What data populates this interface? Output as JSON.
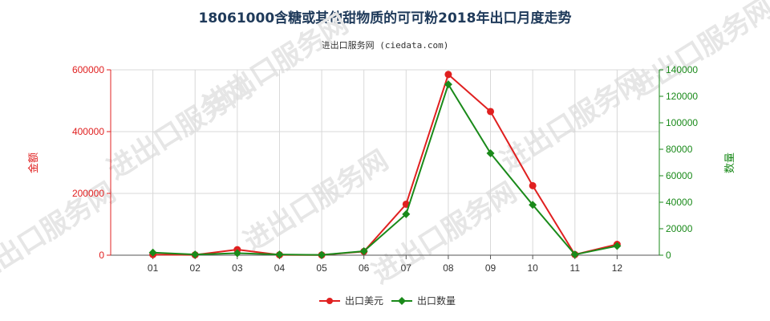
{
  "chart_data": {
    "type": "line",
    "title": "18061000含糖或其他甜物质的可可粉2018年出口月度走势",
    "subtitle": "进出口服务网 (ciedata.com)",
    "categories": [
      "01",
      "02",
      "03",
      "04",
      "05",
      "06",
      "07",
      "08",
      "09",
      "10",
      "11",
      "12"
    ],
    "y_left": {
      "label": "金额",
      "ylim": [
        0,
        600000
      ],
      "ticks": [
        0,
        200000,
        400000,
        600000
      ],
      "color": "#e02020"
    },
    "y_right": {
      "label": "数量",
      "ylim": [
        0,
        140000
      ],
      "ticks": [
        0,
        20000,
        40000,
        60000,
        80000,
        100000,
        120000,
        140000
      ],
      "color": "#1a8a1a"
    },
    "series": [
      {
        "name": "出口美元",
        "axis": "left",
        "color": "#e02020",
        "marker": "circle",
        "values": [
          2000,
          1000,
          18000,
          1000,
          500,
          12000,
          165000,
          585000,
          465000,
          225000,
          2000,
          35000
        ]
      },
      {
        "name": "出口数量",
        "axis": "right",
        "color": "#1a8a1a",
        "marker": "diamond",
        "values": [
          2000,
          500,
          1500,
          500,
          200,
          3000,
          31000,
          129000,
          77000,
          38000,
          500,
          7000
        ]
      }
    ],
    "grid": true,
    "legend": "bottom-center",
    "watermark": "进出口服务网"
  }
}
